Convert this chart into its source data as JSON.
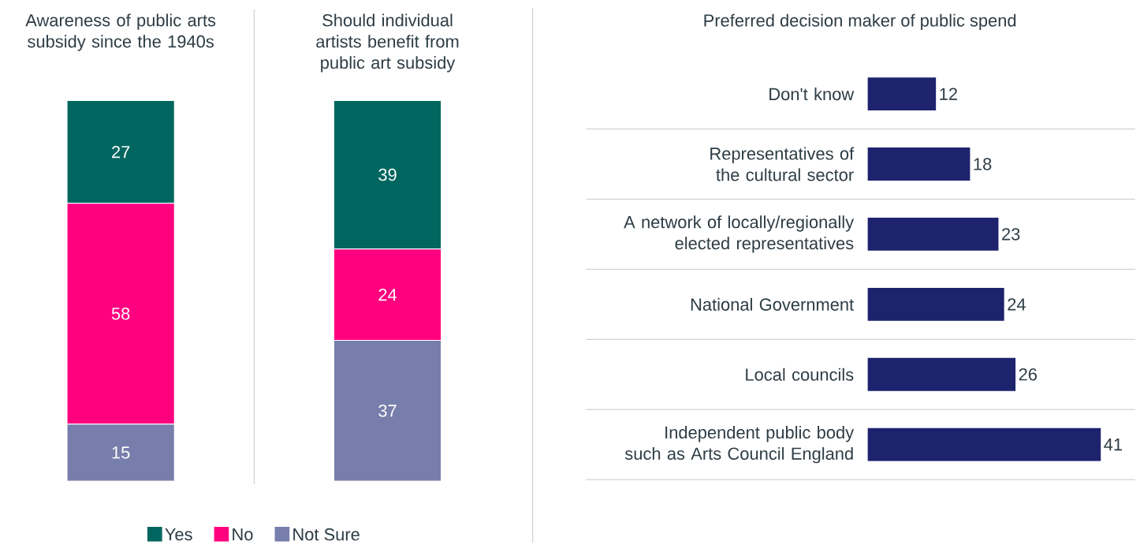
{
  "chart_data": [
    {
      "type": "bar",
      "stacked": true,
      "title": "Awareness of public arts subsidy since the 1940s",
      "categories": [
        null
      ],
      "series": [
        {
          "name": "Not Sure",
          "color": "#787eab",
          "values": [
            15
          ]
        },
        {
          "name": "No",
          "color": "#ff007f",
          "values": [
            58
          ]
        },
        {
          "name": "Yes",
          "color": "#00665f",
          "values": [
            27
          ]
        }
      ],
      "data_labels": true,
      "tick_labels": false,
      "legend": "bottom"
    },
    {
      "type": "bar",
      "stacked": true,
      "title": "Should individual artists benefit from public art subsidy",
      "categories": [
        null
      ],
      "series": [
        {
          "color": "#787eab",
          "values": [
            37
          ]
        },
        {
          "color": "#ff007f",
          "values": [
            24
          ]
        },
        {
          "color": "#00665f",
          "values": [
            39
          ]
        }
      ],
      "data_labels": true,
      "tick_labels": false
    },
    {
      "type": "bar",
      "orientation": "horizontal",
      "title": "Preferred decision maker of public spend",
      "categories": [
        "Don't know",
        "Representatives of the cultural sector",
        "A network of locally/regionally elected representatives",
        "National Government",
        "Local councils",
        "Independent public body such as Arts Council England"
      ],
      "values": [
        12,
        18,
        23,
        24,
        26,
        41
      ],
      "color": "#1e236e",
      "data_labels": true,
      "grid": "y",
      "tick_labels": "y"
    }
  ]
}
